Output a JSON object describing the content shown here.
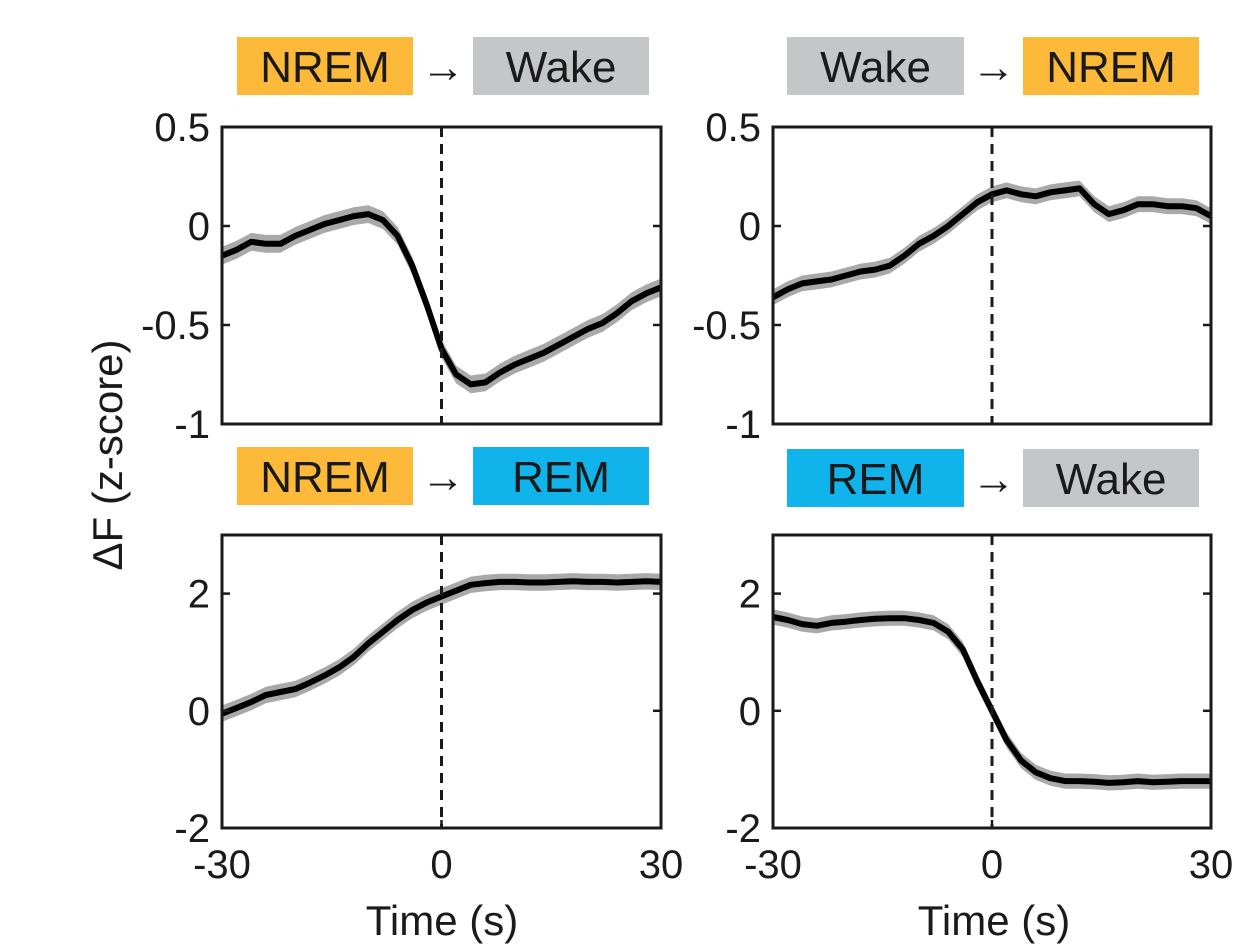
{
  "figure": {
    "ylabel": "ΔF (z-score)",
    "xlabel": "Time (s)"
  },
  "colors": {
    "NREM": "#FDBA3A",
    "Wake": "#C5C6C8",
    "REM": "#10B4EB",
    "mean_line": "#000000",
    "sem_band": "#A9A9A9"
  },
  "chart_data": [
    {
      "type": "line",
      "from_state": "NREM",
      "to_state": "Wake",
      "arrow": "→",
      "xlim": [
        -30,
        30
      ],
      "ylim": [
        -1,
        0.5
      ],
      "yticks": [
        0.5,
        0,
        -0.5,
        -1
      ],
      "ytick_labels": [
        "0.5",
        "0",
        "-0.5",
        "-1"
      ],
      "xticks": [
        -30,
        0,
        30
      ],
      "xtick_labels": [],
      "show_xticklabels": false,
      "onset_line_x": 0,
      "sem": 0.045,
      "x": [
        -30,
        -28,
        -26,
        -24,
        -22,
        -20,
        -18,
        -16,
        -14,
        -12,
        -10,
        -8,
        -6,
        -4,
        -2,
        0,
        2,
        4,
        6,
        8,
        10,
        12,
        14,
        16,
        18,
        20,
        22,
        24,
        26,
        28,
        30
      ],
      "y": [
        -0.15,
        -0.12,
        -0.08,
        -0.09,
        -0.09,
        -0.05,
        -0.02,
        0.01,
        0.03,
        0.05,
        0.06,
        0.03,
        -0.05,
        -0.2,
        -0.4,
        -0.62,
        -0.75,
        -0.8,
        -0.79,
        -0.74,
        -0.7,
        -0.67,
        -0.64,
        -0.6,
        -0.56,
        -0.52,
        -0.49,
        -0.44,
        -0.38,
        -0.34,
        -0.31
      ]
    },
    {
      "type": "line",
      "from_state": "Wake",
      "to_state": "NREM",
      "arrow": "→",
      "xlim": [
        -30,
        30
      ],
      "ylim": [
        -1,
        0.5
      ],
      "yticks": [
        0.5,
        0,
        -0.5,
        -1
      ],
      "ytick_labels": [
        "0.5",
        "0",
        "-0.5",
        "-1"
      ],
      "xticks": [
        -30,
        0,
        30
      ],
      "xtick_labels": [],
      "show_xticklabels": false,
      "onset_line_x": 0,
      "sem": 0.04,
      "x": [
        -30,
        -28,
        -26,
        -24,
        -22,
        -20,
        -18,
        -16,
        -14,
        -12,
        -10,
        -8,
        -6,
        -4,
        -2,
        0,
        2,
        4,
        6,
        8,
        10,
        12,
        14,
        16,
        18,
        20,
        22,
        24,
        26,
        28,
        30
      ],
      "y": [
        -0.36,
        -0.32,
        -0.29,
        -0.28,
        -0.27,
        -0.25,
        -0.23,
        -0.22,
        -0.2,
        -0.15,
        -0.09,
        -0.05,
        0.0,
        0.06,
        0.12,
        0.16,
        0.18,
        0.16,
        0.15,
        0.17,
        0.18,
        0.19,
        0.11,
        0.06,
        0.08,
        0.11,
        0.11,
        0.1,
        0.1,
        0.09,
        0.05
      ]
    },
    {
      "type": "line",
      "from_state": "NREM",
      "to_state": "REM",
      "arrow": "→",
      "xlim": [
        -30,
        30
      ],
      "ylim": [
        -2,
        3
      ],
      "yticks": [
        2,
        0,
        -2
      ],
      "ytick_labels": [
        "2",
        "0",
        "-2"
      ],
      "xticks": [
        -30,
        0,
        30
      ],
      "xtick_labels": [
        "-30",
        "0",
        "30"
      ],
      "show_xticklabels": true,
      "onset_line_x": 0,
      "sem": 0.14,
      "x": [
        -30,
        -28,
        -26,
        -24,
        -22,
        -20,
        -18,
        -16,
        -14,
        -12,
        -10,
        -8,
        -6,
        -4,
        -2,
        0,
        2,
        4,
        6,
        8,
        10,
        12,
        14,
        16,
        18,
        20,
        22,
        24,
        26,
        28,
        30
      ],
      "y": [
        -0.05,
        0.05,
        0.15,
        0.27,
        0.32,
        0.37,
        0.48,
        0.6,
        0.74,
        0.92,
        1.15,
        1.35,
        1.55,
        1.72,
        1.85,
        1.95,
        2.05,
        2.15,
        2.18,
        2.2,
        2.2,
        2.19,
        2.19,
        2.2,
        2.21,
        2.2,
        2.2,
        2.19,
        2.2,
        2.21,
        2.2
      ]
    },
    {
      "type": "line",
      "from_state": "REM",
      "to_state": "Wake",
      "arrow": "→",
      "xlim": [
        -30,
        30
      ],
      "ylim": [
        -2,
        3
      ],
      "yticks": [
        2,
        0,
        -2
      ],
      "ytick_labels": [
        "2",
        "0",
        "-2"
      ],
      "xticks": [
        -30,
        0,
        30
      ],
      "xtick_labels": [
        "-30",
        "0",
        "30"
      ],
      "show_xticklabels": true,
      "onset_line_x": 0,
      "sem": 0.13,
      "x": [
        -30,
        -28,
        -26,
        -24,
        -22,
        -20,
        -18,
        -16,
        -14,
        -12,
        -10,
        -8,
        -6,
        -4,
        -2,
        0,
        2,
        4,
        6,
        8,
        10,
        12,
        14,
        16,
        18,
        20,
        22,
        24,
        26,
        28,
        30
      ],
      "y": [
        1.6,
        1.55,
        1.48,
        1.45,
        1.5,
        1.52,
        1.55,
        1.57,
        1.58,
        1.58,
        1.55,
        1.5,
        1.35,
        1.05,
        0.5,
        0.0,
        -0.5,
        -0.85,
        -1.05,
        -1.15,
        -1.2,
        -1.2,
        -1.21,
        -1.23,
        -1.22,
        -1.2,
        -1.22,
        -1.21,
        -1.2,
        -1.2,
        -1.2
      ]
    }
  ]
}
